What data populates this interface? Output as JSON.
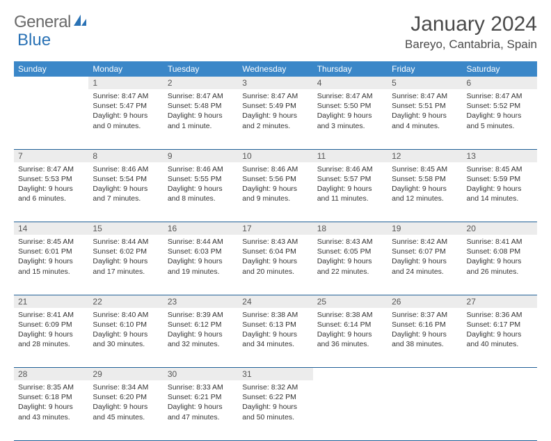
{
  "brand": {
    "part1": "General",
    "part2": "Blue"
  },
  "title": "January 2024",
  "location": "Bareyo, Cantabria, Spain",
  "colors": {
    "header_bg": "#3b87c8",
    "rule": "#1f5f96",
    "daynum_bg": "#ececec",
    "logo_blue": "#2a72b5",
    "text": "#333333"
  },
  "day_headers": [
    "Sunday",
    "Monday",
    "Tuesday",
    "Wednesday",
    "Thursday",
    "Friday",
    "Saturday"
  ],
  "weeks": [
    {
      "nums": [
        "",
        "1",
        "2",
        "3",
        "4",
        "5",
        "6"
      ],
      "cells": [
        {
          "lines": []
        },
        {
          "lines": [
            "Sunrise: 8:47 AM",
            "Sunset: 5:47 PM",
            "Daylight: 9 hours",
            "and 0 minutes."
          ]
        },
        {
          "lines": [
            "Sunrise: 8:47 AM",
            "Sunset: 5:48 PM",
            "Daylight: 9 hours",
            "and 1 minute."
          ]
        },
        {
          "lines": [
            "Sunrise: 8:47 AM",
            "Sunset: 5:49 PM",
            "Daylight: 9 hours",
            "and 2 minutes."
          ]
        },
        {
          "lines": [
            "Sunrise: 8:47 AM",
            "Sunset: 5:50 PM",
            "Daylight: 9 hours",
            "and 3 minutes."
          ]
        },
        {
          "lines": [
            "Sunrise: 8:47 AM",
            "Sunset: 5:51 PM",
            "Daylight: 9 hours",
            "and 4 minutes."
          ]
        },
        {
          "lines": [
            "Sunrise: 8:47 AM",
            "Sunset: 5:52 PM",
            "Daylight: 9 hours",
            "and 5 minutes."
          ]
        }
      ]
    },
    {
      "nums": [
        "7",
        "8",
        "9",
        "10",
        "11",
        "12",
        "13"
      ],
      "cells": [
        {
          "lines": [
            "Sunrise: 8:47 AM",
            "Sunset: 5:53 PM",
            "Daylight: 9 hours",
            "and 6 minutes."
          ]
        },
        {
          "lines": [
            "Sunrise: 8:46 AM",
            "Sunset: 5:54 PM",
            "Daylight: 9 hours",
            "and 7 minutes."
          ]
        },
        {
          "lines": [
            "Sunrise: 8:46 AM",
            "Sunset: 5:55 PM",
            "Daylight: 9 hours",
            "and 8 minutes."
          ]
        },
        {
          "lines": [
            "Sunrise: 8:46 AM",
            "Sunset: 5:56 PM",
            "Daylight: 9 hours",
            "and 9 minutes."
          ]
        },
        {
          "lines": [
            "Sunrise: 8:46 AM",
            "Sunset: 5:57 PM",
            "Daylight: 9 hours",
            "and 11 minutes."
          ]
        },
        {
          "lines": [
            "Sunrise: 8:45 AM",
            "Sunset: 5:58 PM",
            "Daylight: 9 hours",
            "and 12 minutes."
          ]
        },
        {
          "lines": [
            "Sunrise: 8:45 AM",
            "Sunset: 5:59 PM",
            "Daylight: 9 hours",
            "and 14 minutes."
          ]
        }
      ]
    },
    {
      "nums": [
        "14",
        "15",
        "16",
        "17",
        "18",
        "19",
        "20"
      ],
      "cells": [
        {
          "lines": [
            "Sunrise: 8:45 AM",
            "Sunset: 6:01 PM",
            "Daylight: 9 hours",
            "and 15 minutes."
          ]
        },
        {
          "lines": [
            "Sunrise: 8:44 AM",
            "Sunset: 6:02 PM",
            "Daylight: 9 hours",
            "and 17 minutes."
          ]
        },
        {
          "lines": [
            "Sunrise: 8:44 AM",
            "Sunset: 6:03 PM",
            "Daylight: 9 hours",
            "and 19 minutes."
          ]
        },
        {
          "lines": [
            "Sunrise: 8:43 AM",
            "Sunset: 6:04 PM",
            "Daylight: 9 hours",
            "and 20 minutes."
          ]
        },
        {
          "lines": [
            "Sunrise: 8:43 AM",
            "Sunset: 6:05 PM",
            "Daylight: 9 hours",
            "and 22 minutes."
          ]
        },
        {
          "lines": [
            "Sunrise: 8:42 AM",
            "Sunset: 6:07 PM",
            "Daylight: 9 hours",
            "and 24 minutes."
          ]
        },
        {
          "lines": [
            "Sunrise: 8:41 AM",
            "Sunset: 6:08 PM",
            "Daylight: 9 hours",
            "and 26 minutes."
          ]
        }
      ]
    },
    {
      "nums": [
        "21",
        "22",
        "23",
        "24",
        "25",
        "26",
        "27"
      ],
      "cells": [
        {
          "lines": [
            "Sunrise: 8:41 AM",
            "Sunset: 6:09 PM",
            "Daylight: 9 hours",
            "and 28 minutes."
          ]
        },
        {
          "lines": [
            "Sunrise: 8:40 AM",
            "Sunset: 6:10 PM",
            "Daylight: 9 hours",
            "and 30 minutes."
          ]
        },
        {
          "lines": [
            "Sunrise: 8:39 AM",
            "Sunset: 6:12 PM",
            "Daylight: 9 hours",
            "and 32 minutes."
          ]
        },
        {
          "lines": [
            "Sunrise: 8:38 AM",
            "Sunset: 6:13 PM",
            "Daylight: 9 hours",
            "and 34 minutes."
          ]
        },
        {
          "lines": [
            "Sunrise: 8:38 AM",
            "Sunset: 6:14 PM",
            "Daylight: 9 hours",
            "and 36 minutes."
          ]
        },
        {
          "lines": [
            "Sunrise: 8:37 AM",
            "Sunset: 6:16 PM",
            "Daylight: 9 hours",
            "and 38 minutes."
          ]
        },
        {
          "lines": [
            "Sunrise: 8:36 AM",
            "Sunset: 6:17 PM",
            "Daylight: 9 hours",
            "and 40 minutes."
          ]
        }
      ]
    },
    {
      "nums": [
        "28",
        "29",
        "30",
        "31",
        "",
        "",
        ""
      ],
      "cells": [
        {
          "lines": [
            "Sunrise: 8:35 AM",
            "Sunset: 6:18 PM",
            "Daylight: 9 hours",
            "and 43 minutes."
          ]
        },
        {
          "lines": [
            "Sunrise: 8:34 AM",
            "Sunset: 6:20 PM",
            "Daylight: 9 hours",
            "and 45 minutes."
          ]
        },
        {
          "lines": [
            "Sunrise: 8:33 AM",
            "Sunset: 6:21 PM",
            "Daylight: 9 hours",
            "and 47 minutes."
          ]
        },
        {
          "lines": [
            "Sunrise: 8:32 AM",
            "Sunset: 6:22 PM",
            "Daylight: 9 hours",
            "and 50 minutes."
          ]
        },
        {
          "lines": []
        },
        {
          "lines": []
        },
        {
          "lines": []
        }
      ]
    }
  ]
}
